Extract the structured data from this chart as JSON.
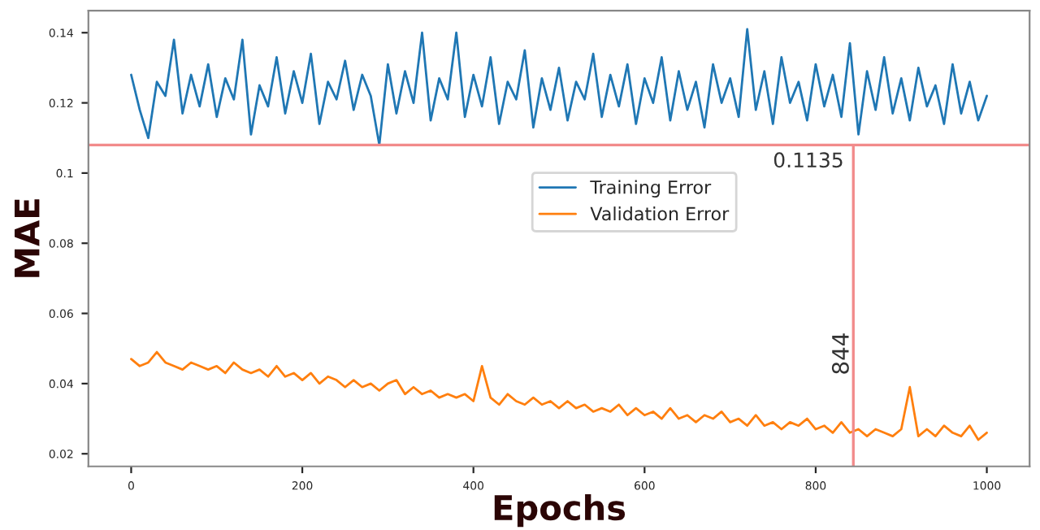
{
  "chart_data": {
    "type": "line",
    "xlabel": "Epochs",
    "ylabel": "MAE",
    "x": [
      0,
      10,
      20,
      30,
      40,
      50,
      60,
      70,
      80,
      90,
      100,
      110,
      120,
      130,
      140,
      150,
      160,
      170,
      180,
      190,
      200,
      210,
      220,
      230,
      240,
      250,
      260,
      270,
      280,
      290,
      300,
      310,
      320,
      330,
      340,
      350,
      360,
      370,
      380,
      390,
      400,
      410,
      420,
      430,
      440,
      450,
      460,
      470,
      480,
      490,
      500,
      510,
      520,
      530,
      540,
      550,
      560,
      570,
      580,
      590,
      600,
      610,
      620,
      630,
      640,
      650,
      660,
      670,
      680,
      690,
      700,
      710,
      720,
      730,
      740,
      750,
      760,
      770,
      780,
      790,
      800,
      810,
      820,
      830,
      840,
      850,
      860,
      870,
      880,
      890,
      900,
      910,
      920,
      930,
      940,
      950,
      960,
      970,
      980,
      990,
      1000
    ],
    "series": [
      {
        "name": "Training Error",
        "color": "#1f77b4",
        "values": [
          0.128,
          0.118,
          0.11,
          0.126,
          0.122,
          0.138,
          0.117,
          0.128,
          0.119,
          0.131,
          0.116,
          0.127,
          0.121,
          0.138,
          0.111,
          0.125,
          0.119,
          0.133,
          0.117,
          0.129,
          0.12,
          0.134,
          0.114,
          0.126,
          0.121,
          0.132,
          0.118,
          0.128,
          0.122,
          0.108,
          0.131,
          0.117,
          0.129,
          0.12,
          0.14,
          0.115,
          0.127,
          0.121,
          0.14,
          0.116,
          0.128,
          0.119,
          0.133,
          0.114,
          0.126,
          0.121,
          0.135,
          0.113,
          0.127,
          0.118,
          0.13,
          0.115,
          0.126,
          0.121,
          0.134,
          0.116,
          0.128,
          0.119,
          0.131,
          0.114,
          0.127,
          0.12,
          0.133,
          0.115,
          0.129,
          0.118,
          0.126,
          0.113,
          0.131,
          0.12,
          0.127,
          0.116,
          0.141,
          0.118,
          0.129,
          0.114,
          0.133,
          0.12,
          0.126,
          0.115,
          0.131,
          0.119,
          0.128,
          0.116,
          0.137,
          0.111,
          0.129,
          0.118,
          0.133,
          0.117,
          0.127,
          0.115,
          0.13,
          0.119,
          0.125,
          0.114,
          0.131,
          0.117,
          0.126,
          0.115,
          0.122
        ]
      },
      {
        "name": "Validation Error",
        "color": "#ff7f0e",
        "values": [
          0.047,
          0.045,
          0.046,
          0.049,
          0.046,
          0.045,
          0.044,
          0.046,
          0.045,
          0.044,
          0.045,
          0.043,
          0.046,
          0.044,
          0.043,
          0.044,
          0.042,
          0.045,
          0.042,
          0.043,
          0.041,
          0.043,
          0.04,
          0.042,
          0.041,
          0.039,
          0.041,
          0.039,
          0.04,
          0.038,
          0.04,
          0.041,
          0.037,
          0.039,
          0.037,
          0.038,
          0.036,
          0.037,
          0.036,
          0.037,
          0.035,
          0.045,
          0.036,
          0.034,
          0.037,
          0.035,
          0.034,
          0.036,
          0.034,
          0.035,
          0.033,
          0.035,
          0.033,
          0.034,
          0.032,
          0.033,
          0.032,
          0.034,
          0.031,
          0.033,
          0.031,
          0.032,
          0.03,
          0.033,
          0.03,
          0.031,
          0.029,
          0.031,
          0.03,
          0.032,
          0.029,
          0.03,
          0.028,
          0.031,
          0.028,
          0.029,
          0.027,
          0.029,
          0.028,
          0.03,
          0.027,
          0.028,
          0.026,
          0.029,
          0.026,
          0.027,
          0.025,
          0.027,
          0.026,
          0.025,
          0.027,
          0.039,
          0.025,
          0.027,
          0.025,
          0.028,
          0.026,
          0.025,
          0.028,
          0.024,
          0.026
        ]
      }
    ],
    "xlim": [
      -50,
      1050
    ],
    "ylim": [
      0.0164,
      0.1463
    ],
    "xticks": [
      0,
      200,
      400,
      600,
      800,
      1000
    ],
    "yticks": [
      0.02,
      0.04,
      0.06,
      0.08,
      0.1,
      0.12,
      0.14
    ],
    "annotations": [
      "0.1135"
    ],
    "ref_lines": [
      {
        "axis": "y",
        "value": 0.108,
        "color": "#f28b8b"
      },
      {
        "axis": "x",
        "value": 844,
        "label": "844",
        "color": "#f28b8b"
      }
    ],
    "legend": "center",
    "grid": false
  }
}
